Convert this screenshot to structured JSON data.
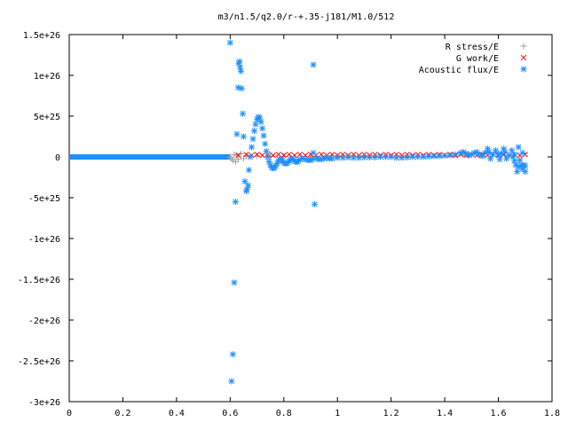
{
  "chart_data": {
    "type": "scatter",
    "title": "m3/n1.5/q2.0/r-+.35-j181/M1.0/512",
    "xlabel": "",
    "ylabel": "",
    "xlim": [
      0,
      1.8
    ],
    "ylim": [
      -3e+26,
      1.5e+26
    ],
    "x_ticks": [
      0,
      0.2,
      0.4,
      0.6,
      0.8,
      1.0,
      1.2,
      1.4,
      1.6,
      1.8
    ],
    "x_tick_labels": [
      "0",
      "0.2",
      "0.4",
      "0.6",
      "0.8",
      "1",
      "1.2",
      "1.4",
      "1.6",
      "1.8"
    ],
    "y_ticks": [
      -3e+26,
      -2.5e+26,
      -2e+26,
      -1.5e+26,
      -1e+26,
      -5e+25,
      0,
      5e+25,
      1e+26,
      1.5e+26
    ],
    "y_tick_labels": [
      "-3e+26",
      "-2.5e+26",
      "-2e+26",
      "-1.5e+26",
      "-1e+26",
      "-5e+25",
      "0",
      "5e+25",
      "1e+26",
      "1.5e+26"
    ],
    "grid": false,
    "legend_position": "top-right",
    "series": [
      {
        "name": "R stress/E",
        "marker": "plus",
        "color": "#a0a0a0",
        "points": [
          [
            0.6,
            0
          ],
          [
            0.605,
            -2e+24
          ],
          [
            0.61,
            -4e+24
          ],
          [
            0.615,
            3e+24
          ],
          [
            0.62,
            -6e+24
          ],
          [
            0.625,
            2e+24
          ],
          [
            0.63,
            -3e+24
          ],
          [
            0.64,
            4e+24
          ],
          [
            0.65,
            -2e+24
          ],
          [
            0.66,
            1e+24
          ],
          [
            0.7,
            1e+24
          ],
          [
            0.75,
            5e+23
          ],
          [
            0.8,
            5e+23
          ],
          [
            0.9,
            2e+23
          ],
          [
            1.0,
            2e+23
          ],
          [
            1.1,
            1e+23
          ]
        ]
      },
      {
        "name": "G work/E",
        "marker": "cross",
        "color": "#ff0000",
        "points": [
          [
            0.63,
            2e+24
          ],
          [
            0.66,
            3e+24
          ],
          [
            0.68,
            2e+24
          ],
          [
            0.7,
            3e+24
          ],
          [
            0.72,
            2e+24
          ],
          [
            0.74,
            3e+24
          ],
          [
            0.76,
            2e+24
          ],
          [
            0.78,
            3e+24
          ],
          [
            0.8,
            2e+24
          ],
          [
            0.82,
            3e+24
          ],
          [
            0.84,
            2e+24
          ],
          [
            0.86,
            3e+24
          ],
          [
            0.88,
            2e+24
          ],
          [
            0.9,
            3e+24
          ],
          [
            0.92,
            2e+24
          ],
          [
            0.94,
            3e+24
          ],
          [
            0.96,
            2e+24
          ],
          [
            0.98,
            3e+24
          ],
          [
            1.0,
            2e+24
          ],
          [
            1.02,
            3e+24
          ],
          [
            1.04,
            2e+24
          ],
          [
            1.06,
            3e+24
          ],
          [
            1.08,
            2e+24
          ],
          [
            1.1,
            3e+24
          ],
          [
            1.12,
            2e+24
          ],
          [
            1.14,
            3e+24
          ],
          [
            1.16,
            2e+24
          ],
          [
            1.18,
            3e+24
          ],
          [
            1.2,
            2e+24
          ],
          [
            1.22,
            3e+24
          ],
          [
            1.24,
            2e+24
          ],
          [
            1.26,
            3e+24
          ],
          [
            1.28,
            2e+24
          ],
          [
            1.3,
            3e+24
          ],
          [
            1.32,
            2e+24
          ],
          [
            1.34,
            3e+24
          ],
          [
            1.36,
            2e+24
          ],
          [
            1.38,
            3e+24
          ],
          [
            1.4,
            2e+24
          ],
          [
            1.42,
            3e+24
          ],
          [
            1.44,
            2e+24
          ],
          [
            1.46,
            3e+24
          ],
          [
            1.48,
            2e+24
          ],
          [
            1.5,
            3e+24
          ],
          [
            1.52,
            2e+24
          ],
          [
            1.54,
            3e+24
          ],
          [
            1.56,
            2e+24
          ],
          [
            1.58,
            3e+24
          ],
          [
            1.6,
            2e+24
          ],
          [
            1.62,
            3e+24
          ],
          [
            1.64,
            2e+24
          ],
          [
            1.66,
            3e+24
          ],
          [
            1.68,
            2e+24
          ],
          [
            1.7,
            3e+24
          ]
        ]
      },
      {
        "name": "Acoustic flux/E",
        "marker": "star",
        "color": "#1e90ff",
        "points": [
          [
            0.6,
            1.4e+26
          ],
          [
            0.605,
            -2.75e+26
          ],
          [
            0.61,
            -2.42e+26
          ],
          [
            0.615,
            -1.54e+26
          ],
          [
            0.62,
            -5.5e+25
          ],
          [
            0.625,
            2.8e+25
          ],
          [
            0.63,
            8.5e+25
          ],
          [
            0.632,
            1.15e+26
          ],
          [
            0.635,
            1.17e+26
          ],
          [
            0.637,
            1.1e+26
          ],
          [
            0.64,
            1.05e+26
          ],
          [
            0.643,
            8.4e+25
          ],
          [
            0.647,
            5.3e+25
          ],
          [
            0.65,
            2.5e+25
          ],
          [
            0.655,
            -3e+25
          ],
          [
            0.66,
            -4.2e+25
          ],
          [
            0.663,
            -4e+25
          ],
          [
            0.667,
            -3.5e+25
          ],
          [
            0.67,
            -1.6e+25
          ],
          [
            0.675,
            0
          ],
          [
            0.68,
            1.2e+25
          ],
          [
            0.685,
            2.2e+25
          ],
          [
            0.69,
            3.2e+25
          ],
          [
            0.695,
            4e+25
          ],
          [
            0.7,
            4.6e+25
          ],
          [
            0.705,
            4.9e+25
          ],
          [
            0.71,
            4.8e+25
          ],
          [
            0.715,
            4.3e+25
          ],
          [
            0.72,
            3.5e+25
          ],
          [
            0.725,
            2.6e+25
          ],
          [
            0.73,
            1.6e+25
          ],
          [
            0.735,
            7e+24
          ],
          [
            0.74,
            0
          ],
          [
            0.745,
            -6e+24
          ],
          [
            0.75,
            -1e+25
          ],
          [
            0.755,
            -1.3e+25
          ],
          [
            0.76,
            -1.4e+25
          ],
          [
            0.765,
            -1.35e+25
          ],
          [
            0.77,
            -1.1e+25
          ],
          [
            0.775,
            -8e+24
          ],
          [
            0.78,
            -5e+24
          ],
          [
            0.785,
            -3e+24
          ],
          [
            0.79,
            -3e+24
          ],
          [
            0.795,
            -5e+24
          ],
          [
            0.8,
            -7e+24
          ],
          [
            0.805,
            -8e+24
          ],
          [
            0.81,
            -8e+24
          ],
          [
            0.815,
            -7e+24
          ],
          [
            0.82,
            -5e+24
          ],
          [
            0.825,
            -3e+24
          ],
          [
            0.83,
            -2e+24
          ],
          [
            0.835,
            -3e+24
          ],
          [
            0.84,
            -5e+24
          ],
          [
            0.845,
            -6e+24
          ],
          [
            0.85,
            -6e+24
          ],
          [
            0.855,
            -5e+24
          ],
          [
            0.86,
            -3e+24
          ],
          [
            0.87,
            -2e+24
          ],
          [
            0.88,
            -3e+24
          ],
          [
            0.89,
            -4e+24
          ],
          [
            0.9,
            -4e+24
          ],
          [
            0.905,
            -3e+24
          ],
          [
            0.91,
            5e+24
          ],
          [
            0.91,
            1.13e+26
          ],
          [
            0.915,
            -5.8e+25
          ],
          [
            0.92,
            -2e+24
          ],
          [
            0.93,
            -3e+24
          ],
          [
            0.94,
            -3e+24
          ],
          [
            0.95,
            -2e+24
          ],
          [
            0.96,
            -1e+24
          ],
          [
            0.97,
            -2e+24
          ],
          [
            0.98,
            -2e+24
          ],
          [
            1.0,
            -1e+24
          ],
          [
            1.02,
            -1e+24
          ],
          [
            1.04,
            -5e+23
          ],
          [
            1.06,
            -1e+24
          ],
          [
            1.08,
            -1e+24
          ],
          [
            1.1,
            -5e+23
          ],
          [
            1.12,
            -5e+23
          ],
          [
            1.14,
            -5e+23
          ],
          [
            1.16,
            0
          ],
          [
            1.18,
            0
          ],
          [
            1.2,
            0
          ],
          [
            1.22,
            -1e+24
          ],
          [
            1.24,
            -1e+24
          ],
          [
            1.26,
            -5e+23
          ],
          [
            1.28,
            0
          ],
          [
            1.3,
            0
          ],
          [
            1.32,
            0
          ],
          [
            1.34,
            5e+23
          ],
          [
            1.36,
            1e+24
          ],
          [
            1.38,
            1e+24
          ],
          [
            1.4,
            1.5e+24
          ],
          [
            1.42,
            2e+24
          ],
          [
            1.44,
            3e+24
          ],
          [
            1.46,
            5e+24
          ],
          [
            1.47,
            6e+24
          ],
          [
            1.48,
            4e+24
          ],
          [
            1.49,
            2e+24
          ],
          [
            1.5,
            3e+24
          ],
          [
            1.51,
            5e+24
          ],
          [
            1.52,
            6e+24
          ],
          [
            1.53,
            3e+24
          ],
          [
            1.54,
            1e+24
          ],
          [
            1.55,
            5e+24
          ],
          [
            1.56,
            1e+25
          ],
          [
            1.565,
            6e+24
          ],
          [
            1.57,
            -2e+24
          ],
          [
            1.58,
            3e+24
          ],
          [
            1.59,
            8e+24
          ],
          [
            1.6,
            3e+24
          ],
          [
            1.605,
            -3e+24
          ],
          [
            1.61,
            4e+24
          ],
          [
            1.62,
            1e+25
          ],
          [
            1.625,
            6e+24
          ],
          [
            1.63,
            -2e+24
          ],
          [
            1.64,
            2e+24
          ],
          [
            1.65,
            8e+24
          ],
          [
            1.655,
            0
          ],
          [
            1.66,
            -5e+24
          ],
          [
            1.665,
            -1e+25
          ],
          [
            1.67,
            -1.8e+25
          ],
          [
            1.675,
            -1.2e+25
          ],
          [
            1.68,
            -4e+24
          ],
          [
            1.685,
            -1e+25
          ],
          [
            1.69,
            -1.5e+25
          ],
          [
            1.695,
            -1e+25
          ],
          [
            1.7,
            -1.8e+25
          ],
          [
            1.7,
            -1.1e+25
          ],
          [
            1.675,
            1.2e+25
          ],
          [
            1.69,
            5e+24
          ],
          [
            1.66,
            3e+24
          ]
        ]
      }
    ]
  }
}
